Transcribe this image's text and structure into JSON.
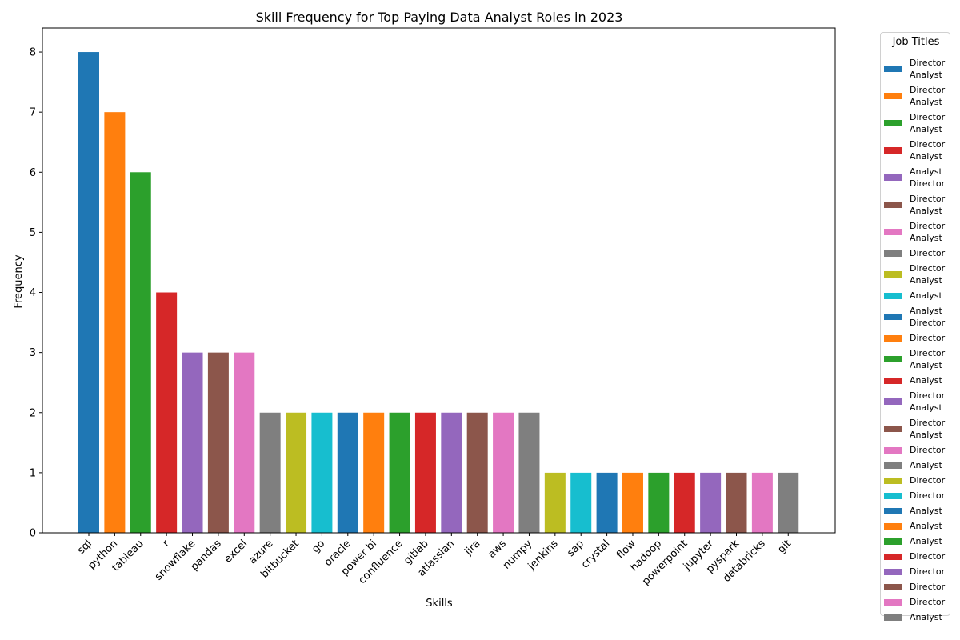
{
  "chart_data": {
    "type": "bar",
    "title": "Skill Frequency for Top Paying Data Analyst Roles in 2023",
    "xlabel": "Skills",
    "ylabel": "Frequency",
    "ylim": [
      0,
      8.4
    ],
    "yticks": [
      0,
      1,
      2,
      3,
      4,
      5,
      6,
      7,
      8
    ],
    "grid": false,
    "categories": [
      "sql",
      "python",
      "tableau",
      "r",
      "snowflake",
      "pandas",
      "excel",
      "azure",
      "bitbucket",
      "go",
      "oracle",
      "power bi",
      "confluence",
      "gitlab",
      "atlassian",
      "jira",
      "aws",
      "numpy",
      "jenkins",
      "sap",
      "crystal",
      "flow",
      "hadoop",
      "powerpoint",
      "jupyter",
      "pyspark",
      "databricks",
      "git"
    ],
    "values": [
      8,
      7,
      6,
      4,
      3,
      3,
      3,
      2,
      2,
      2,
      2,
      2,
      2,
      2,
      2,
      2,
      2,
      2,
      1,
      1,
      1,
      1,
      1,
      1,
      1,
      1,
      1,
      1
    ],
    "colors": [
      "#1f77b4",
      "#ff7f0e",
      "#2ca02c",
      "#d62728",
      "#9467bd",
      "#8c564b",
      "#e377c2",
      "#7f7f7f",
      "#bcbd22",
      "#17becf"
    ],
    "legend": {
      "title": "Job Titles",
      "placement": "outside-right",
      "entries": [
        "Director\nAnalyst",
        "Director\nAnalyst",
        "Director\nAnalyst",
        "Director\nAnalyst",
        "Analyst\nDirector",
        "Director\nAnalyst",
        "Director\nAnalyst",
        "Director",
        "Director\nAnalyst",
        "Analyst",
        "Analyst\nDirector",
        "Director",
        "Director\nAnalyst",
        "Analyst",
        "Director\nAnalyst",
        "Director\nAnalyst",
        "Director",
        "Analyst",
        "Director",
        "Director",
        "Analyst",
        "Analyst",
        "Analyst",
        "Director",
        "Director",
        "Director",
        "Director",
        "Analyst"
      ]
    }
  }
}
